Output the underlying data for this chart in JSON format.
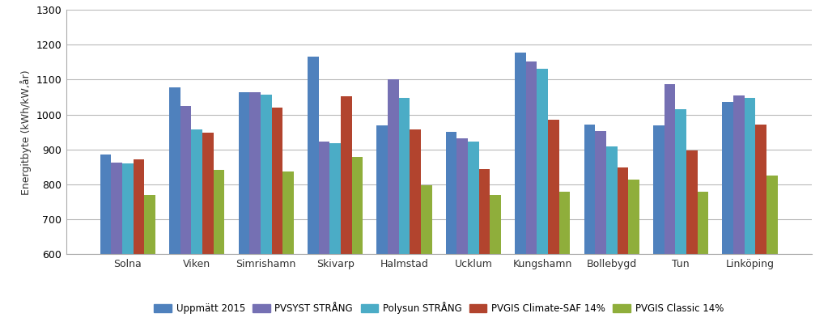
{
  "categories": [
    "Solna",
    "Viken",
    "Simrishamn",
    "Skivarp",
    "Halmstad",
    "Ucklum",
    "Kungshamn",
    "Bollebygd",
    "Tun",
    "Linköping"
  ],
  "series": {
    "Uppmätt 2015": [
      885,
      1078,
      1065,
      1165,
      968,
      950,
      1178,
      972,
      968,
      1037
    ],
    "PVSYST STRÅNG": [
      863,
      1025,
      1065,
      923,
      1100,
      933,
      1152,
      953,
      1088,
      1055
    ],
    "Polysun STRÅNG": [
      860,
      957,
      1057,
      918,
      1048,
      922,
      1130,
      908,
      1015,
      1047
    ],
    "PVGIS Climate-SAF 14%": [
      872,
      948,
      1020,
      1052,
      958,
      845,
      985,
      848,
      898,
      972
    ],
    "PVGIS Classic 14%": [
      769,
      842,
      838,
      879,
      798,
      770,
      778,
      815,
      780,
      825
    ]
  },
  "colors": {
    "Uppmätt 2015": "#4f81bd",
    "PVSYST STRÅNG": "#7570b3",
    "Polysun STRÅNG": "#4bacc6",
    "PVGIS Climate-SAF 14%": "#b2442e",
    "PVGIS Classic 14%": "#8fae3b"
  },
  "ylabel": "Energitbyte (kWh/kW,år)",
  "ylim": [
    600,
    1300
  ],
  "yticks": [
    600,
    700,
    800,
    900,
    1000,
    1100,
    1200,
    1300
  ],
  "background_color": "#ffffff",
  "grid_color": "#b8b8b8",
  "bar_width": 0.16,
  "figsize": [
    10.23,
    4.03
  ],
  "dpi": 100
}
